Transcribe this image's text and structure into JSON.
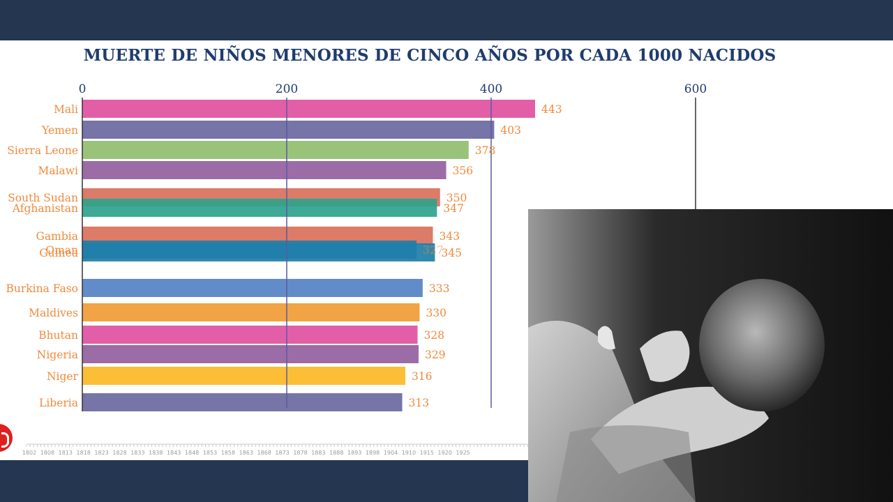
{
  "chart_data": {
    "type": "bar",
    "orientation": "horizontal",
    "title": "MUERTE DE NIÑOS MENORES DE CINCO AÑOS POR CADA 1000 NACIDOS",
    "xlim": [
      0,
      600
    ],
    "x_ticks": [
      0,
      200,
      400,
      600
    ],
    "x_tick_labels": [
      "0",
      "200",
      "400",
      "600"
    ],
    "categories": [
      "Mali",
      "Yemen",
      "Sierra Leone",
      "Malawi",
      "South Sudan",
      "Afghanistan",
      "Gambia",
      "Oman",
      "Guinea",
      "Burkina Faso",
      "Maldives",
      "Bhutan",
      "Nigeria",
      "Niger",
      "Liberia"
    ],
    "values": [
      443,
      403,
      378,
      356,
      350,
      347,
      343,
      327,
      345,
      333,
      330,
      328,
      329,
      316,
      313
    ],
    "value_labels": [
      "443",
      "403",
      "378",
      "356",
      "350",
      "347",
      "343",
      "327",
      "345",
      "333",
      "330",
      "328",
      "329",
      "316",
      "313"
    ],
    "colors": [
      "#e0519f",
      "#6b68a1",
      "#8fbe6e",
      "#9460a0",
      "#d9705a",
      "#2ea38c",
      "#d9705a",
      "#1f7ea8",
      "#1f7ea8",
      "#5582c4",
      "#f19b35",
      "#e0519f",
      "#9460a0",
      "#fbb925",
      "#6b68a1"
    ],
    "timeline": {
      "ticks": [
        "1802",
        "1808",
        "1813",
        "1818",
        "1823",
        "1828",
        "1833",
        "1838",
        "1843",
        "1848",
        "1853",
        "1858",
        "1863",
        "1868",
        "1873",
        "1878",
        "1883",
        "1888",
        "1893",
        "1898",
        "1904",
        "1910",
        "1915",
        "1920",
        "1925"
      ]
    },
    "grid": true,
    "legend": "none"
  }
}
